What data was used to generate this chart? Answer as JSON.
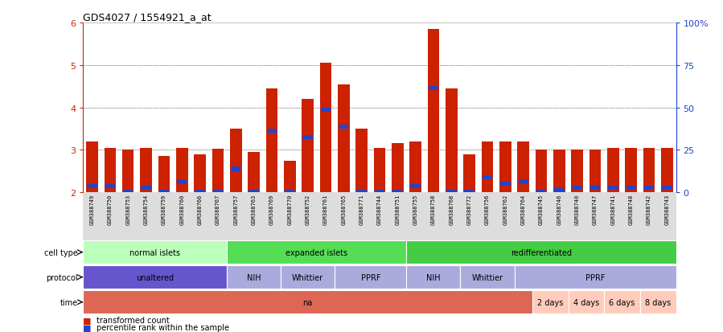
{
  "title": "GDS4027 / 1554921_a_at",
  "samples": [
    "GSM388749",
    "GSM388750",
    "GSM388753",
    "GSM388754",
    "GSM388759",
    "GSM388760",
    "GSM388766",
    "GSM388767",
    "GSM388757",
    "GSM388763",
    "GSM388769",
    "GSM388770",
    "GSM388752",
    "GSM388761",
    "GSM388765",
    "GSM388771",
    "GSM388744",
    "GSM388751",
    "GSM388755",
    "GSM388758",
    "GSM388768",
    "GSM388772",
    "GSM388756",
    "GSM388762",
    "GSM388764",
    "GSM388745",
    "GSM388746",
    "GSM388740",
    "GSM388747",
    "GSM388741",
    "GSM388748",
    "GSM388742",
    "GSM388743"
  ],
  "red_values": [
    3.2,
    3.05,
    3.0,
    3.05,
    2.85,
    3.05,
    2.9,
    3.02,
    3.5,
    2.95,
    4.45,
    2.75,
    4.2,
    5.05,
    4.55,
    3.5,
    3.05,
    3.15,
    3.2,
    5.85,
    4.45,
    2.9,
    3.2,
    3.2,
    3.2,
    3.0,
    3.0,
    3.0,
    3.0,
    3.05,
    3.05,
    3.05,
    3.05
  ],
  "blue_values": [
    2.15,
    2.15,
    2.0,
    2.1,
    2.0,
    2.25,
    2.0,
    2.0,
    2.55,
    2.0,
    3.45,
    2.0,
    3.3,
    3.95,
    3.55,
    2.0,
    2.0,
    2.0,
    2.15,
    4.45,
    2.0,
    2.0,
    2.35,
    2.2,
    2.25,
    2.0,
    2.05,
    2.1,
    2.1,
    2.1,
    2.1,
    2.1,
    2.1
  ],
  "ylim": [
    2.0,
    6.0
  ],
  "yticks_left": [
    2,
    3,
    4,
    5,
    6
  ],
  "yticks_right_labels": [
    "0",
    "25",
    "50",
    "75",
    "100%"
  ],
  "cell_type_groups": [
    {
      "label": "normal islets",
      "start": 0,
      "end": 8,
      "color": "#bbffbb"
    },
    {
      "label": "expanded islets",
      "start": 8,
      "end": 18,
      "color": "#55dd55"
    },
    {
      "label": "redifferentiated",
      "start": 18,
      "end": 33,
      "color": "#44cc44"
    }
  ],
  "protocol_groups": [
    {
      "label": "unaltered",
      "start": 0,
      "end": 8,
      "color": "#6655cc"
    },
    {
      "label": "NIH",
      "start": 8,
      "end": 11,
      "color": "#aaaadd"
    },
    {
      "label": "Whittier",
      "start": 11,
      "end": 14,
      "color": "#aaaadd"
    },
    {
      "label": "PPRF",
      "start": 14,
      "end": 18,
      "color": "#aaaadd"
    },
    {
      "label": "NIH",
      "start": 18,
      "end": 21,
      "color": "#aaaadd"
    },
    {
      "label": "Whittier",
      "start": 21,
      "end": 24,
      "color": "#aaaadd"
    },
    {
      "label": "PPRF",
      "start": 24,
      "end": 33,
      "color": "#aaaadd"
    }
  ],
  "time_groups": [
    {
      "label": "na",
      "start": 0,
      "end": 25,
      "color": "#dd6655"
    },
    {
      "label": "2 days",
      "start": 25,
      "end": 27,
      "color": "#ffccbb"
    },
    {
      "label": "4 days",
      "start": 27,
      "end": 29,
      "color": "#ffccbb"
    },
    {
      "label": "6 days",
      "start": 29,
      "end": 31,
      "color": "#ffccbb"
    },
    {
      "label": "8 days",
      "start": 31,
      "end": 33,
      "color": "#ffccbb"
    }
  ],
  "row_labels": [
    "cell type",
    "protocol",
    "time"
  ],
  "legend_red": "transformed count",
  "legend_blue": "percentile rank within the sample",
  "bar_color_red": "#cc2200",
  "bar_color_blue": "#2244cc",
  "bg_color": "#ffffff",
  "axis_color_left": "#cc2200",
  "axis_color_right": "#2244cc",
  "xtick_bg": "#dddddd"
}
